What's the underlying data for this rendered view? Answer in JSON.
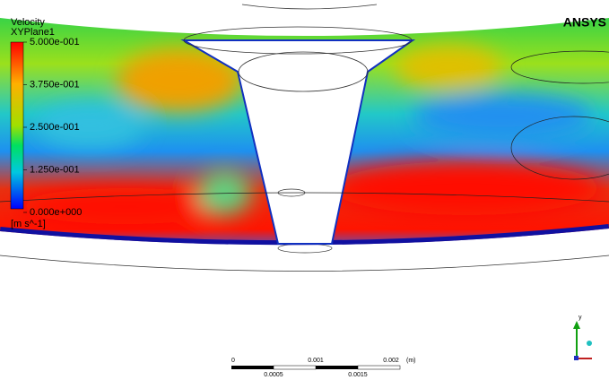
{
  "header": {
    "variable": "Velocity",
    "location": "XYPlane1",
    "logo": "ANSYS"
  },
  "legend": {
    "labels": [
      "5.000e-001",
      "3.750e-001",
      "2.500e-001",
      "1.250e-001",
      "0.000e+000"
    ],
    "unit": "[m s^-1]"
  },
  "scale_bar": {
    "top_labels": [
      "0",
      "0.001",
      "0.002"
    ],
    "unit": "(m)",
    "bottom_labels": [
      "0.0005",
      "0.0015"
    ]
  },
  "triad": {
    "axis": "y"
  }
}
